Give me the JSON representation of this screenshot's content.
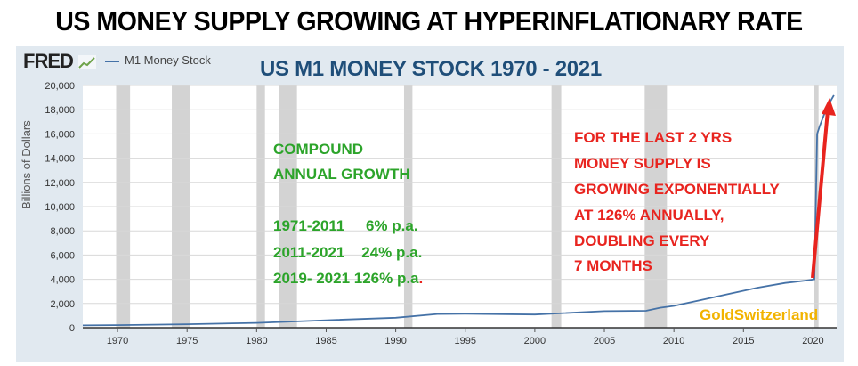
{
  "headline": "US MONEY SUPPLY GROWING AT HYPERINFLATIONARY RATE",
  "fred_logo": "FRED",
  "legend_label": "M1 Money Stock",
  "chart_title": "US M1 MONEY STOCK  1970 - 2021",
  "brand": "GoldSwitzerland",
  "annotation_green": {
    "heading_line1": "COMPOUND",
    "heading_line2": "ANNUAL GROWTH",
    "row1": "1971-2011     6% p.a.",
    "row2": "2011-2021    24% p.a.",
    "row3_main": "2019- 2021 126% p.a",
    "row3_dot": "."
  },
  "annotation_red": {
    "line1": "FOR THE LAST 2 YRS",
    "line2": "MONEY SUPPLY IS",
    "line3": "GROWING EXPONENTIALLY",
    "line4": "AT 126% ANNUALLY,",
    "line5": "DOUBLING EVERY",
    "line6": "7 MONTHS"
  },
  "colors": {
    "series": "#4572a7",
    "recession": "#d3d3d3",
    "panel": "#e1e9f0",
    "arrow": "#e8241f"
  },
  "chart_data": {
    "type": "line",
    "xlabel": "",
    "ylabel": "Billions of Dollars",
    "xlim": [
      1967.5,
      2021.7
    ],
    "ylim": [
      0,
      20000
    ],
    "x_ticks": [
      1970,
      1975,
      1980,
      1985,
      1990,
      1995,
      2000,
      2005,
      2010,
      2015,
      2020
    ],
    "y_ticks": [
      0,
      2000,
      4000,
      6000,
      8000,
      10000,
      12000,
      14000,
      16000,
      18000,
      20000
    ],
    "y_tick_labels": [
      "0",
      "2,000",
      "4,000",
      "6,000",
      "8,000",
      "10,000",
      "12,000",
      "14,000",
      "16,000",
      "18,000",
      "20,000"
    ],
    "recessions": [
      [
        1969.9,
        1970.9
      ],
      [
        1973.9,
        1975.2
      ],
      [
        1980.0,
        1980.6
      ],
      [
        1981.6,
        1982.9
      ],
      [
        1990.6,
        1991.2
      ],
      [
        2001.2,
        2001.9
      ],
      [
        2007.9,
        2009.5
      ],
      [
        2020.1,
        2020.4
      ]
    ],
    "series": [
      {
        "name": "M1 Money Stock",
        "x": [
          1967.5,
          1970,
          1975,
          1980,
          1985,
          1990,
          1993,
          1995,
          2000,
          2005,
          2008,
          2009,
          2010,
          2012,
          2014,
          2016,
          2018,
          2019.5,
          2020.1,
          2020.3,
          2020.5,
          2021.0,
          2021.5
        ],
        "y": [
          190,
          215,
          290,
          400,
          620,
          820,
          1130,
          1150,
          1090,
          1370,
          1400,
          1650,
          1800,
          2300,
          2800,
          3300,
          3700,
          3900,
          4000,
          16000,
          16700,
          18200,
          19200
        ]
      }
    ],
    "grid": true,
    "legend": "top-left"
  }
}
